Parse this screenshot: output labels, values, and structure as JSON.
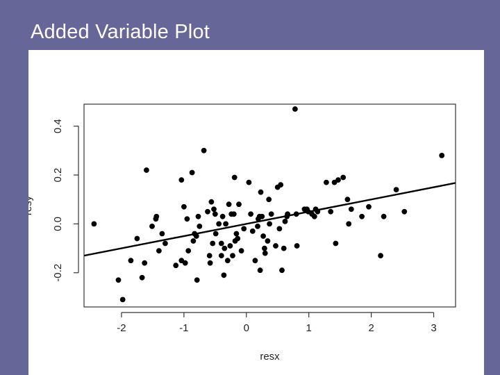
{
  "slide": {
    "title": "Added Variable Plot"
  },
  "chart_data": {
    "type": "scatter",
    "title": "",
    "xlabel": "resx",
    "ylabel": "resy",
    "xlim": [
      -2.6,
      3.35
    ],
    "ylim": [
      -0.34,
      0.49
    ],
    "xticks": [
      -2,
      -1,
      0,
      1,
      2,
      3
    ],
    "yticks": [
      -0.2,
      0.0,
      0.2,
      0.4
    ],
    "xtick_labels": [
      "-2",
      "-1",
      "0",
      "1",
      "2",
      "3"
    ],
    "ytick_labels": [
      "-0.2",
      "0.0",
      "0.2",
      "0.4"
    ],
    "grid": false,
    "fit_line": {
      "intercept": 0.0,
      "slope": 0.05
    },
    "points": [
      [
        -2.44,
        0.0
      ],
      [
        -2.05,
        -0.23
      ],
      [
        -1.98,
        -0.31
      ],
      [
        -1.85,
        -0.15
      ],
      [
        -1.75,
        -0.06
      ],
      [
        -1.67,
        -0.22
      ],
      [
        -1.63,
        -0.16
      ],
      [
        -1.6,
        0.22
      ],
      [
        -1.51,
        -0.01
      ],
      [
        -1.45,
        0.02
      ],
      [
        -1.44,
        0.03
      ],
      [
        -1.4,
        -0.11
      ],
      [
        -1.35,
        -0.04
      ],
      [
        -1.3,
        -0.08
      ],
      [
        -1.13,
        -0.17
      ],
      [
        -1.04,
        0.18
      ],
      [
        -1.04,
        -0.15
      ],
      [
        -1.0,
        0.07
      ],
      [
        -0.98,
        -0.16
      ],
      [
        -0.95,
        0.02
      ],
      [
        -0.93,
        -0.11
      ],
      [
        -0.87,
        0.21
      ],
      [
        -0.85,
        -0.07
      ],
      [
        -0.83,
        -0.04
      ],
      [
        -0.8,
        -0.05
      ],
      [
        -0.79,
        -0.23
      ],
      [
        -0.77,
        0.03
      ],
      [
        -0.75,
        -0.01
      ],
      [
        -0.68,
        0.3
      ],
      [
        -0.62,
        0.05
      ],
      [
        -0.59,
        -0.13
      ],
      [
        -0.58,
        -0.16
      ],
      [
        -0.56,
        0.09
      ],
      [
        -0.54,
        -0.08
      ],
      [
        -0.52,
        0.06
      ],
      [
        -0.5,
        0.04
      ],
      [
        -0.49,
        -0.04
      ],
      [
        -0.44,
        0.0
      ],
      [
        -0.4,
        -0.08
      ],
      [
        -0.4,
        -0.13
      ],
      [
        -0.38,
        0.03
      ],
      [
        -0.36,
        -0.21
      ],
      [
        -0.35,
        -0.1
      ],
      [
        -0.33,
        0.0
      ],
      [
        -0.3,
        -0.15
      ],
      [
        -0.28,
        0.08
      ],
      [
        -0.26,
        -0.09
      ],
      [
        -0.24,
        0.04
      ],
      [
        -0.22,
        -0.13
      ],
      [
        -0.2,
        0.04
      ],
      [
        -0.19,
        0.19
      ],
      [
        -0.18,
        -0.07
      ],
      [
        -0.16,
        -0.04
      ],
      [
        -0.14,
        -0.06
      ],
      [
        -0.12,
        0.08
      ],
      [
        -0.08,
        -0.11
      ],
      [
        -0.04,
        -0.02
      ],
      [
        0.04,
        0.17
      ],
      [
        0.07,
        0.04
      ],
      [
        0.1,
        -0.03
      ],
      [
        0.14,
        -0.15
      ],
      [
        0.18,
        -0.01
      ],
      [
        0.19,
        0.02
      ],
      [
        0.21,
        0.03
      ],
      [
        0.22,
        -0.19
      ],
      [
        0.23,
        0.13
      ],
      [
        0.25,
        0.03
      ],
      [
        0.27,
        -0.05
      ],
      [
        0.29,
        -0.1
      ],
      [
        0.3,
        -0.12
      ],
      [
        0.34,
        -0.07
      ],
      [
        0.36,
        0.1
      ],
      [
        0.37,
        0.0
      ],
      [
        0.4,
        0.04
      ],
      [
        0.47,
        -0.09
      ],
      [
        0.5,
        0.15
      ],
      [
        0.53,
        -0.02
      ],
      [
        0.55,
        0.16
      ],
      [
        0.57,
        -0.19
      ],
      [
        0.6,
        -0.1
      ],
      [
        0.62,
        0.01
      ],
      [
        0.65,
        0.03
      ],
      [
        0.66,
        0.04
      ],
      [
        0.78,
        0.47
      ],
      [
        0.8,
        0.04
      ],
      [
        0.81,
        -0.09
      ],
      [
        0.93,
        0.06
      ],
      [
        0.97,
        0.06
      ],
      [
        0.99,
        0.05
      ],
      [
        1.05,
        0.04
      ],
      [
        1.09,
        0.03
      ],
      [
        1.11,
        0.06
      ],
      [
        1.14,
        0.05
      ],
      [
        1.28,
        0.17
      ],
      [
        1.35,
        0.05
      ],
      [
        1.41,
        0.17
      ],
      [
        1.43,
        -0.08
      ],
      [
        1.47,
        0.18
      ],
      [
        1.55,
        0.19
      ],
      [
        1.62,
        0.1
      ],
      [
        1.64,
        0.0
      ],
      [
        1.68,
        0.06
      ],
      [
        1.85,
        0.03
      ],
      [
        1.96,
        0.07
      ],
      [
        2.15,
        -0.13
      ],
      [
        2.2,
        0.03
      ],
      [
        2.4,
        0.14
      ],
      [
        2.53,
        0.05
      ],
      [
        3.13,
        0.28
      ]
    ]
  }
}
